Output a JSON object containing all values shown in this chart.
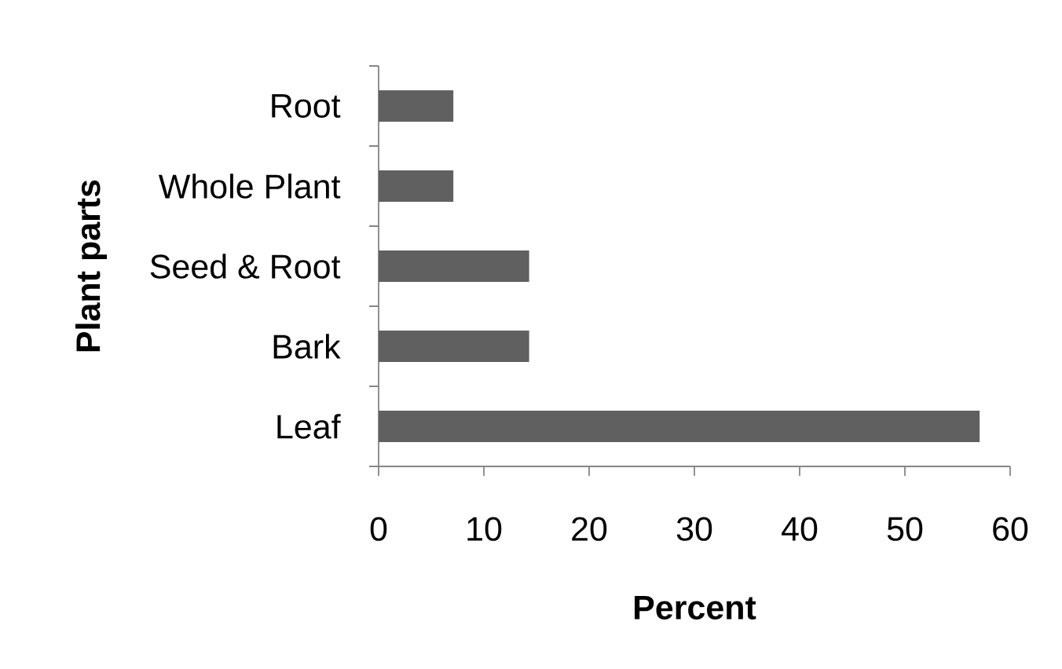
{
  "chart_data": {
    "type": "bar",
    "orientation": "horizontal",
    "xlabel": "Percent",
    "ylabel": "Plant parts",
    "categories": [
      "Root",
      "Whole Plant",
      "Seed & Root",
      "Bark",
      "Leaf"
    ],
    "values": [
      7.1,
      7.1,
      14.3,
      14.3,
      57.1
    ],
    "color": "#606060",
    "xlim": [
      0,
      60
    ],
    "xticks": [
      0,
      10,
      20,
      30,
      40,
      50,
      60
    ]
  }
}
